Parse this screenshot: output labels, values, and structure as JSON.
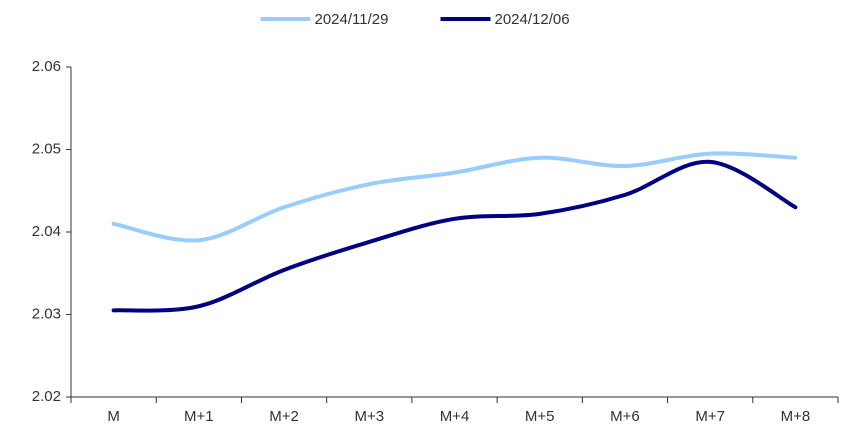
{
  "chart_data": {
    "type": "line",
    "categories": [
      "M",
      "M+1",
      "M+2",
      "M+3",
      "M+4",
      "M+5",
      "M+6",
      "M+7",
      "M+8"
    ],
    "series": [
      {
        "name": "2024/11/29",
        "color": "#99ccff",
        "values": [
          2.041,
          2.039,
          2.043,
          2.0458,
          2.0472,
          2.049,
          2.048,
          2.0495,
          2.049
        ]
      },
      {
        "name": "2024/12/06",
        "color": "#000080",
        "values": [
          2.0305,
          2.031,
          2.0354,
          2.0388,
          2.0416,
          2.0422,
          2.0445,
          2.0485,
          2.043
        ]
      }
    ],
    "ylim": [
      2.02,
      2.06
    ],
    "yticks": [
      2.02,
      2.03,
      2.04,
      2.05,
      2.06
    ],
    "legend": "top",
    "smooth": true
  }
}
